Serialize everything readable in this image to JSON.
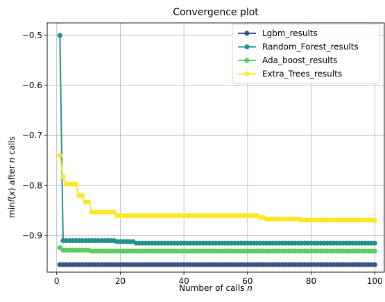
{
  "chart_data": {
    "type": "line",
    "title": "Convergence plot",
    "xlabel": "Number of calls n",
    "ylabel": "min f(x) after n calls",
    "xlim": [
      -3,
      103
    ],
    "ylim": [
      -0.973,
      -0.475
    ],
    "xticks": [
      0,
      20,
      40,
      60,
      80,
      100
    ],
    "yticks": [
      -0.9,
      -0.8,
      -0.7,
      -0.6,
      -0.5
    ],
    "xtick_labels": [
      "0",
      "20",
      "40",
      "60",
      "80",
      "100"
    ],
    "ytick_labels": [
      "−0.9",
      "−0.8",
      "−0.7",
      "−0.6",
      "−0.5"
    ],
    "grid": true,
    "legend_position": "top-right",
    "series": [
      {
        "name": "Lgbm_results",
        "color": "#3b528b",
        "steps": [
          [
            1,
            -0.958
          ],
          [
            100,
            -0.958
          ]
        ]
      },
      {
        "name": "Random_Forest_results",
        "color": "#21918c",
        "steps": [
          [
            1,
            -0.5
          ],
          [
            2,
            -0.91
          ],
          [
            19,
            -0.912
          ],
          [
            25,
            -0.915
          ],
          [
            100,
            -0.915
          ]
        ]
      },
      {
        "name": "Ada_boost_results",
        "color": "#5ec962",
        "steps": [
          [
            1,
            -0.924
          ],
          [
            2,
            -0.929
          ],
          [
            11,
            -0.931
          ],
          [
            100,
            -0.931
          ]
        ]
      },
      {
        "name": "Extra_Trees_results",
        "color": "#fde725",
        "steps": [
          [
            1,
            -0.74
          ],
          [
            2,
            -0.782
          ],
          [
            3,
            -0.797
          ],
          [
            7,
            -0.82
          ],
          [
            9,
            -0.833
          ],
          [
            11,
            -0.853
          ],
          [
            19,
            -0.86
          ],
          [
            64,
            -0.864
          ],
          [
            66,
            -0.867
          ],
          [
            77,
            -0.869
          ],
          [
            100,
            -0.87
          ]
        ]
      }
    ]
  }
}
